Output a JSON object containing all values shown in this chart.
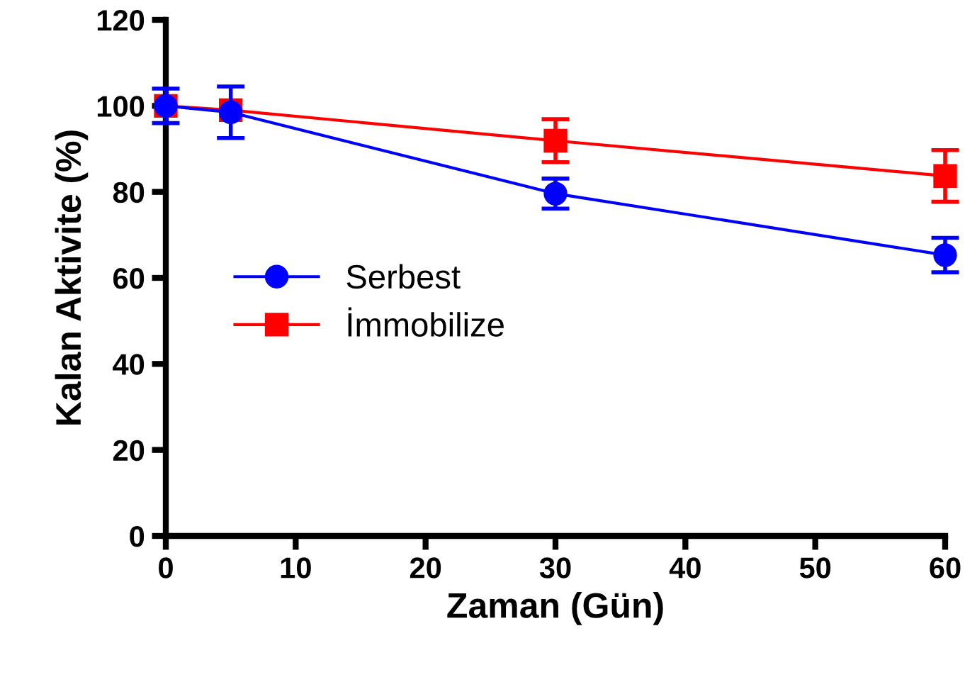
{
  "chart_data": {
    "type": "line",
    "xlabel": "Zaman (Gün)",
    "ylabel": "Kalan Aktivite (%)",
    "x": [
      0,
      5,
      30,
      60
    ],
    "series": [
      {
        "name": "Serbest",
        "color": "#0000ff",
        "marker": "circle",
        "values": [
          100,
          98.5,
          79.6,
          65.3
        ],
        "errors": [
          4,
          6,
          3.5,
          4
        ]
      },
      {
        "name": "İmmobilize",
        "color": "#ff0000",
        "marker": "square",
        "values": [
          100,
          99,
          91.9,
          83.7
        ],
        "errors": [
          null,
          null,
          5,
          6
        ]
      }
    ],
    "xlim": [
      0,
      60
    ],
    "xticks": [
      0,
      10,
      20,
      30,
      40,
      50,
      60
    ],
    "ylim": [
      0,
      120
    ],
    "yticks": [
      0,
      20,
      40,
      60,
      80,
      100,
      120
    ],
    "grid": false,
    "legend": "left",
    "line_style": "solid"
  }
}
